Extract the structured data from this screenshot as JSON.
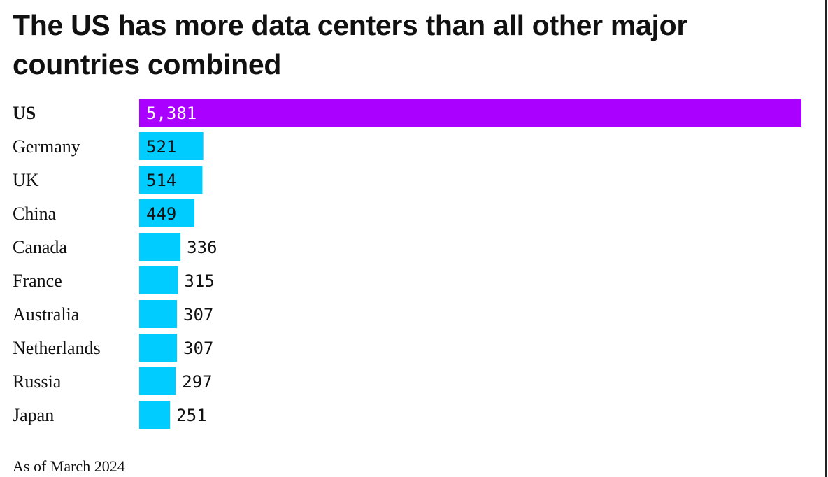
{
  "chart_data": {
    "type": "bar",
    "orientation": "horizontal",
    "title": "The US has more data centers than all other major countries combined",
    "categories": [
      "US",
      "Germany",
      "UK",
      "China",
      "Canada",
      "France",
      "Australia",
      "Netherlands",
      "Russia",
      "Japan"
    ],
    "values": [
      5381,
      521,
      514,
      449,
      336,
      315,
      307,
      307,
      297,
      251
    ],
    "value_labels": [
      "5,381",
      "521",
      "514",
      "449",
      "336",
      "315",
      "307",
      "307",
      "297",
      "251"
    ],
    "highlight_category": "US",
    "colors": {
      "highlight": "#aa00ff",
      "default": "#00ccff",
      "label_inside_highlight": "#ffffff",
      "label_default": "#111111"
    },
    "xlim": [
      0,
      5381
    ],
    "grid": false,
    "legend": "none",
    "footnote": "As of March 2024"
  }
}
